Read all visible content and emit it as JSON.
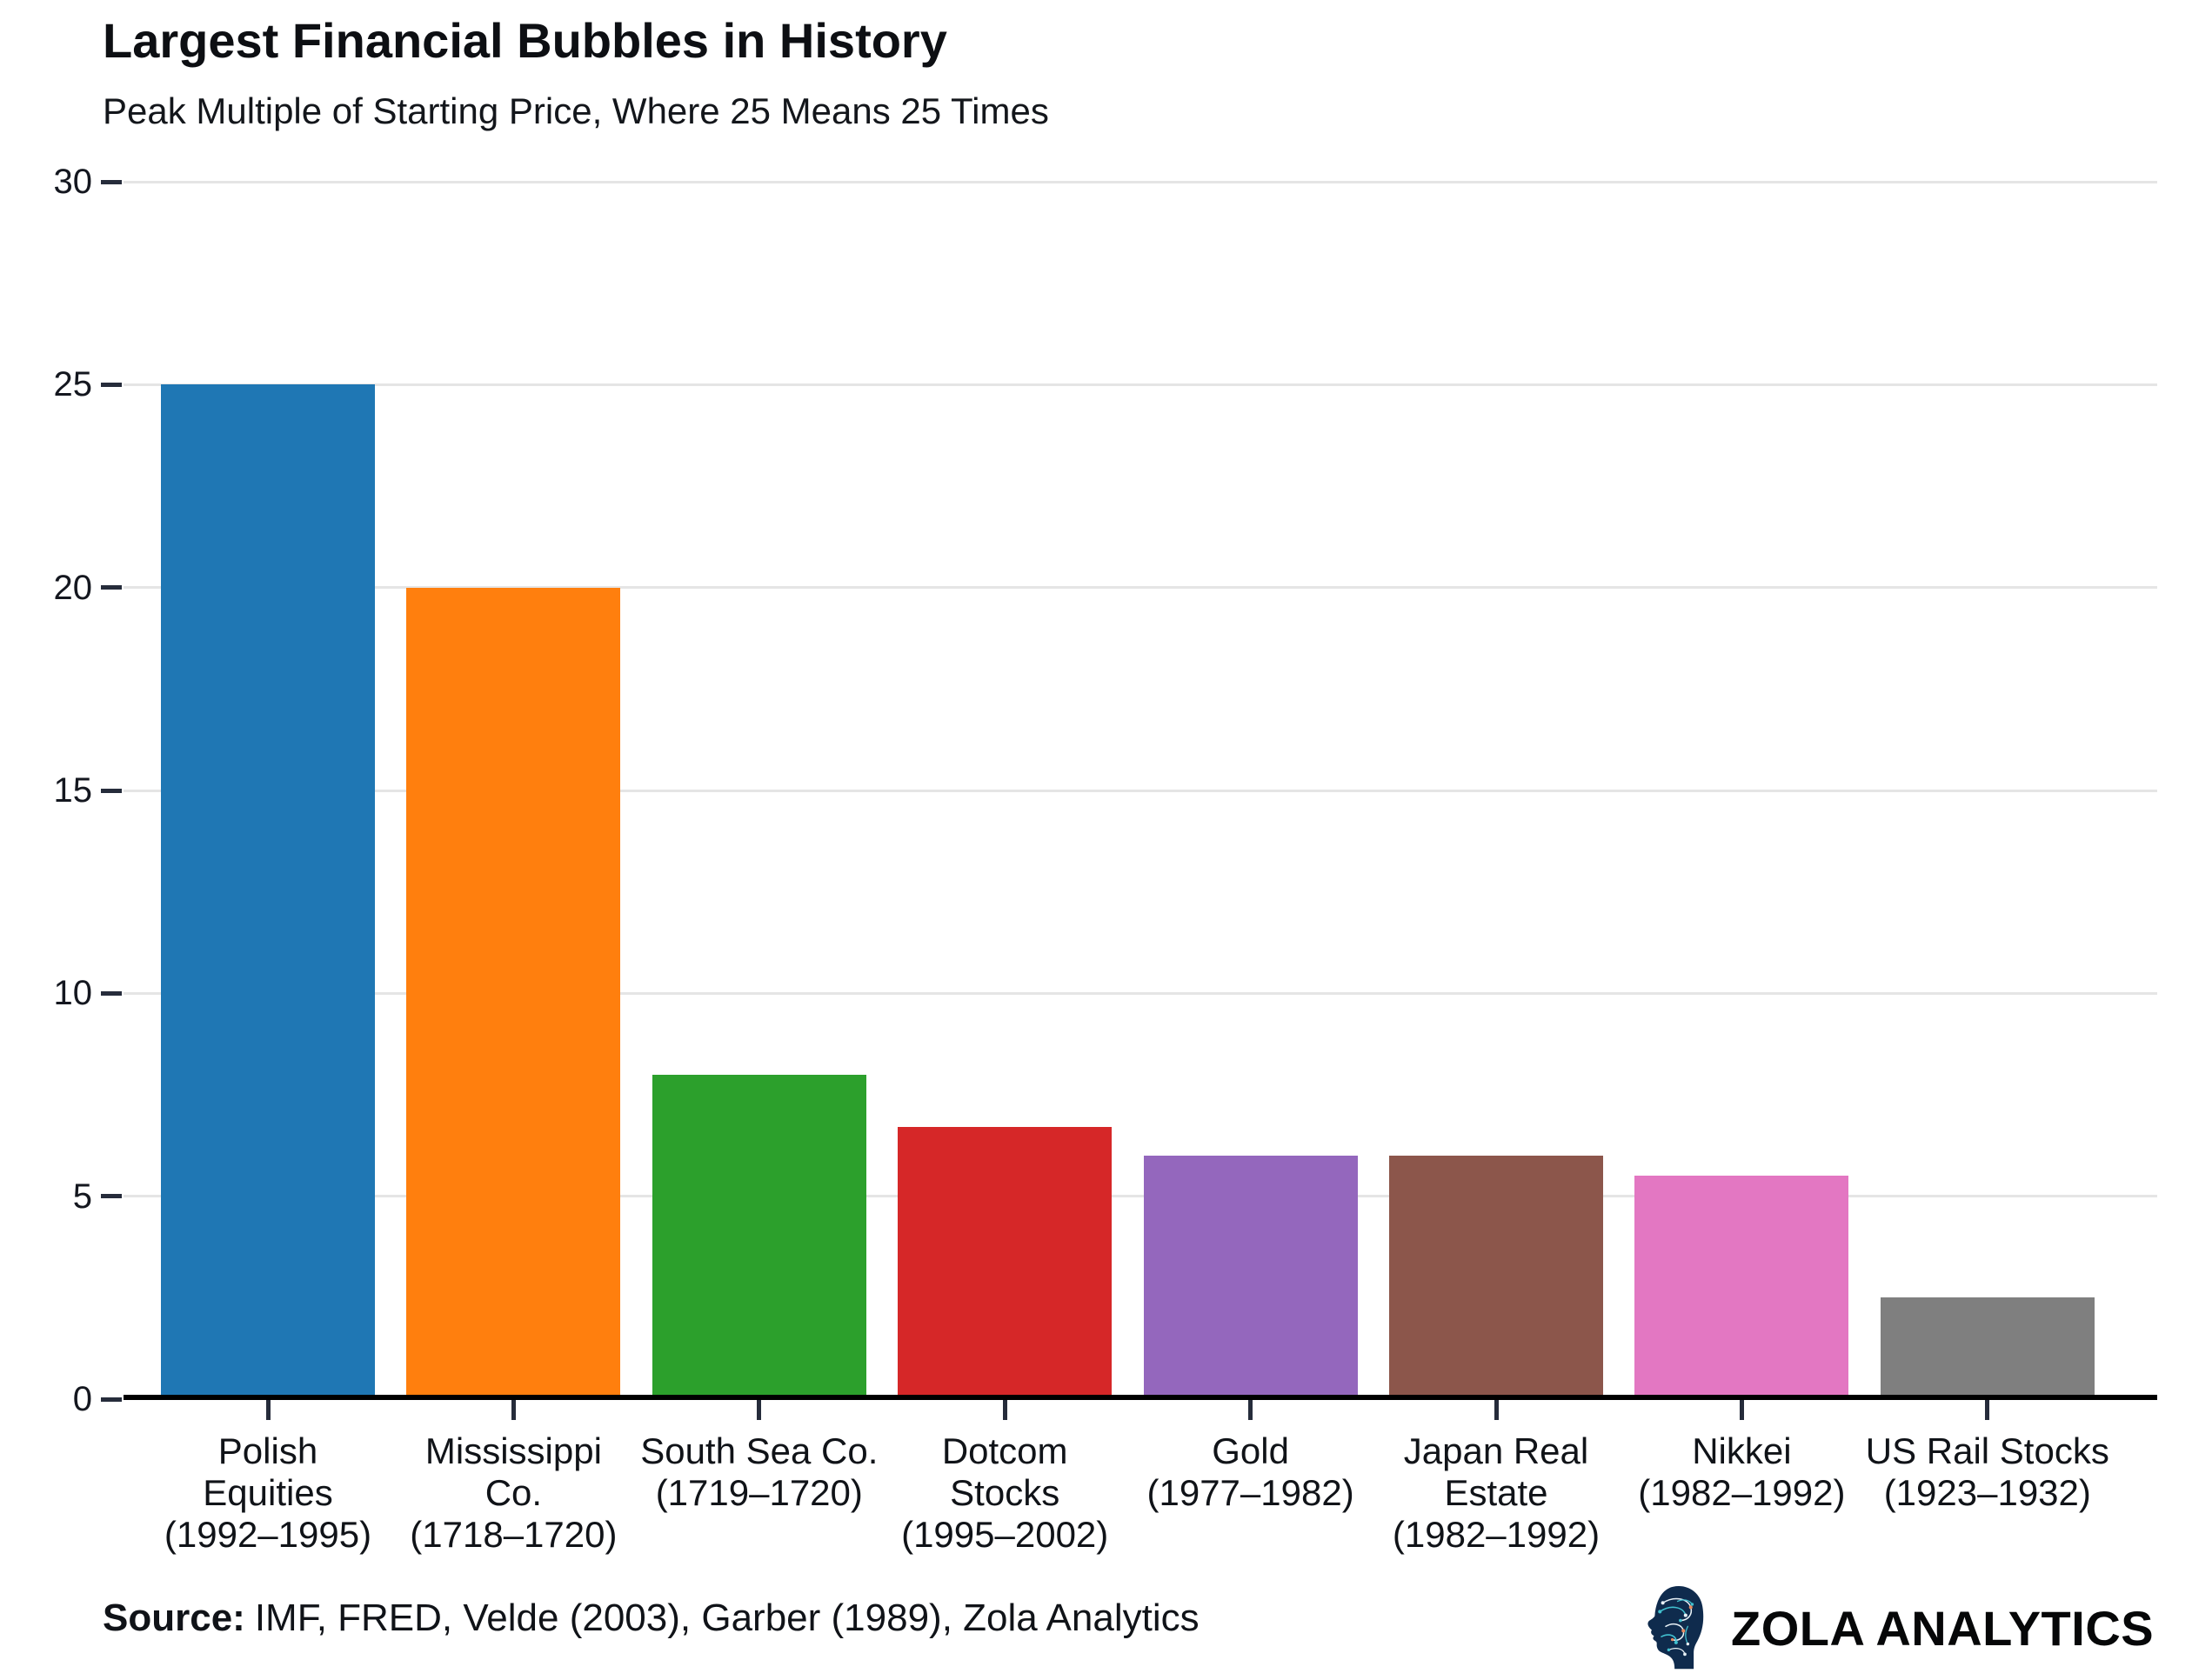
{
  "header": {
    "title": "Largest Financial Bubbles in History",
    "subtitle": "Peak Multiple of Starting Price, Where 25 Means 25 Times"
  },
  "chart_data": {
    "type": "bar",
    "title": "Largest Financial Bubbles in History",
    "subtitle": "Peak Multiple of Starting Price, Where 25 Means 25 Times",
    "categories": [
      "Polish Equities (1992–1995)",
      "Mississippi Co. (1718–1720)",
      "South Sea Co. (1719–1720)",
      "Dotcom Stocks (1995–2002)",
      "Gold (1977–1982)",
      "Japan Real Estate (1982–1992)",
      "Nikkei (1982–1992)",
      "US Rail Stocks (1923–1932)"
    ],
    "category_label_lines": [
      [
        "Polish",
        "Equities",
        "(1992–1995)"
      ],
      [
        "Mississippi",
        "Co.",
        "(1718–1720)"
      ],
      [
        "South Sea Co.",
        "(1719–1720)"
      ],
      [
        "Dotcom",
        "Stocks",
        "(1995–2002)"
      ],
      [
        "Gold",
        "(1977–1982)"
      ],
      [
        "Japan Real",
        "Estate",
        "(1982–1992)"
      ],
      [
        "Nikkei",
        "(1982–1992)"
      ],
      [
        "US Rail Stocks",
        "(1923–1932)"
      ]
    ],
    "values": [
      25,
      20,
      8,
      6.7,
      6,
      6,
      5.5,
      2.5
    ],
    "bar_colors": [
      "#1f77b4",
      "#ff7f0e",
      "#2ca02c",
      "#d62728",
      "#9467bd",
      "#8c564b",
      "#e377c2",
      "#7f7f7f"
    ],
    "ylim": [
      0,
      30
    ],
    "yticks": [
      0,
      5,
      10,
      15,
      20,
      25,
      30
    ],
    "grid": "horizontal-only",
    "legend": "none",
    "xlabel": "",
    "ylabel": ""
  },
  "footer": {
    "source_label": "Source:",
    "source_text": "IMF, FRED, Velde (2003), Garber (1989), Zola Analytics",
    "brand_name": "ZOLA ANALYTICS"
  },
  "icons": {
    "brand_logo": "head-circuit-icon"
  },
  "colors": {
    "logo_navy": "#0f2b4d",
    "logo_teal": "#41c0cf",
    "logo_orange": "#e88b5f",
    "logo_light": "#e9f2f7"
  }
}
